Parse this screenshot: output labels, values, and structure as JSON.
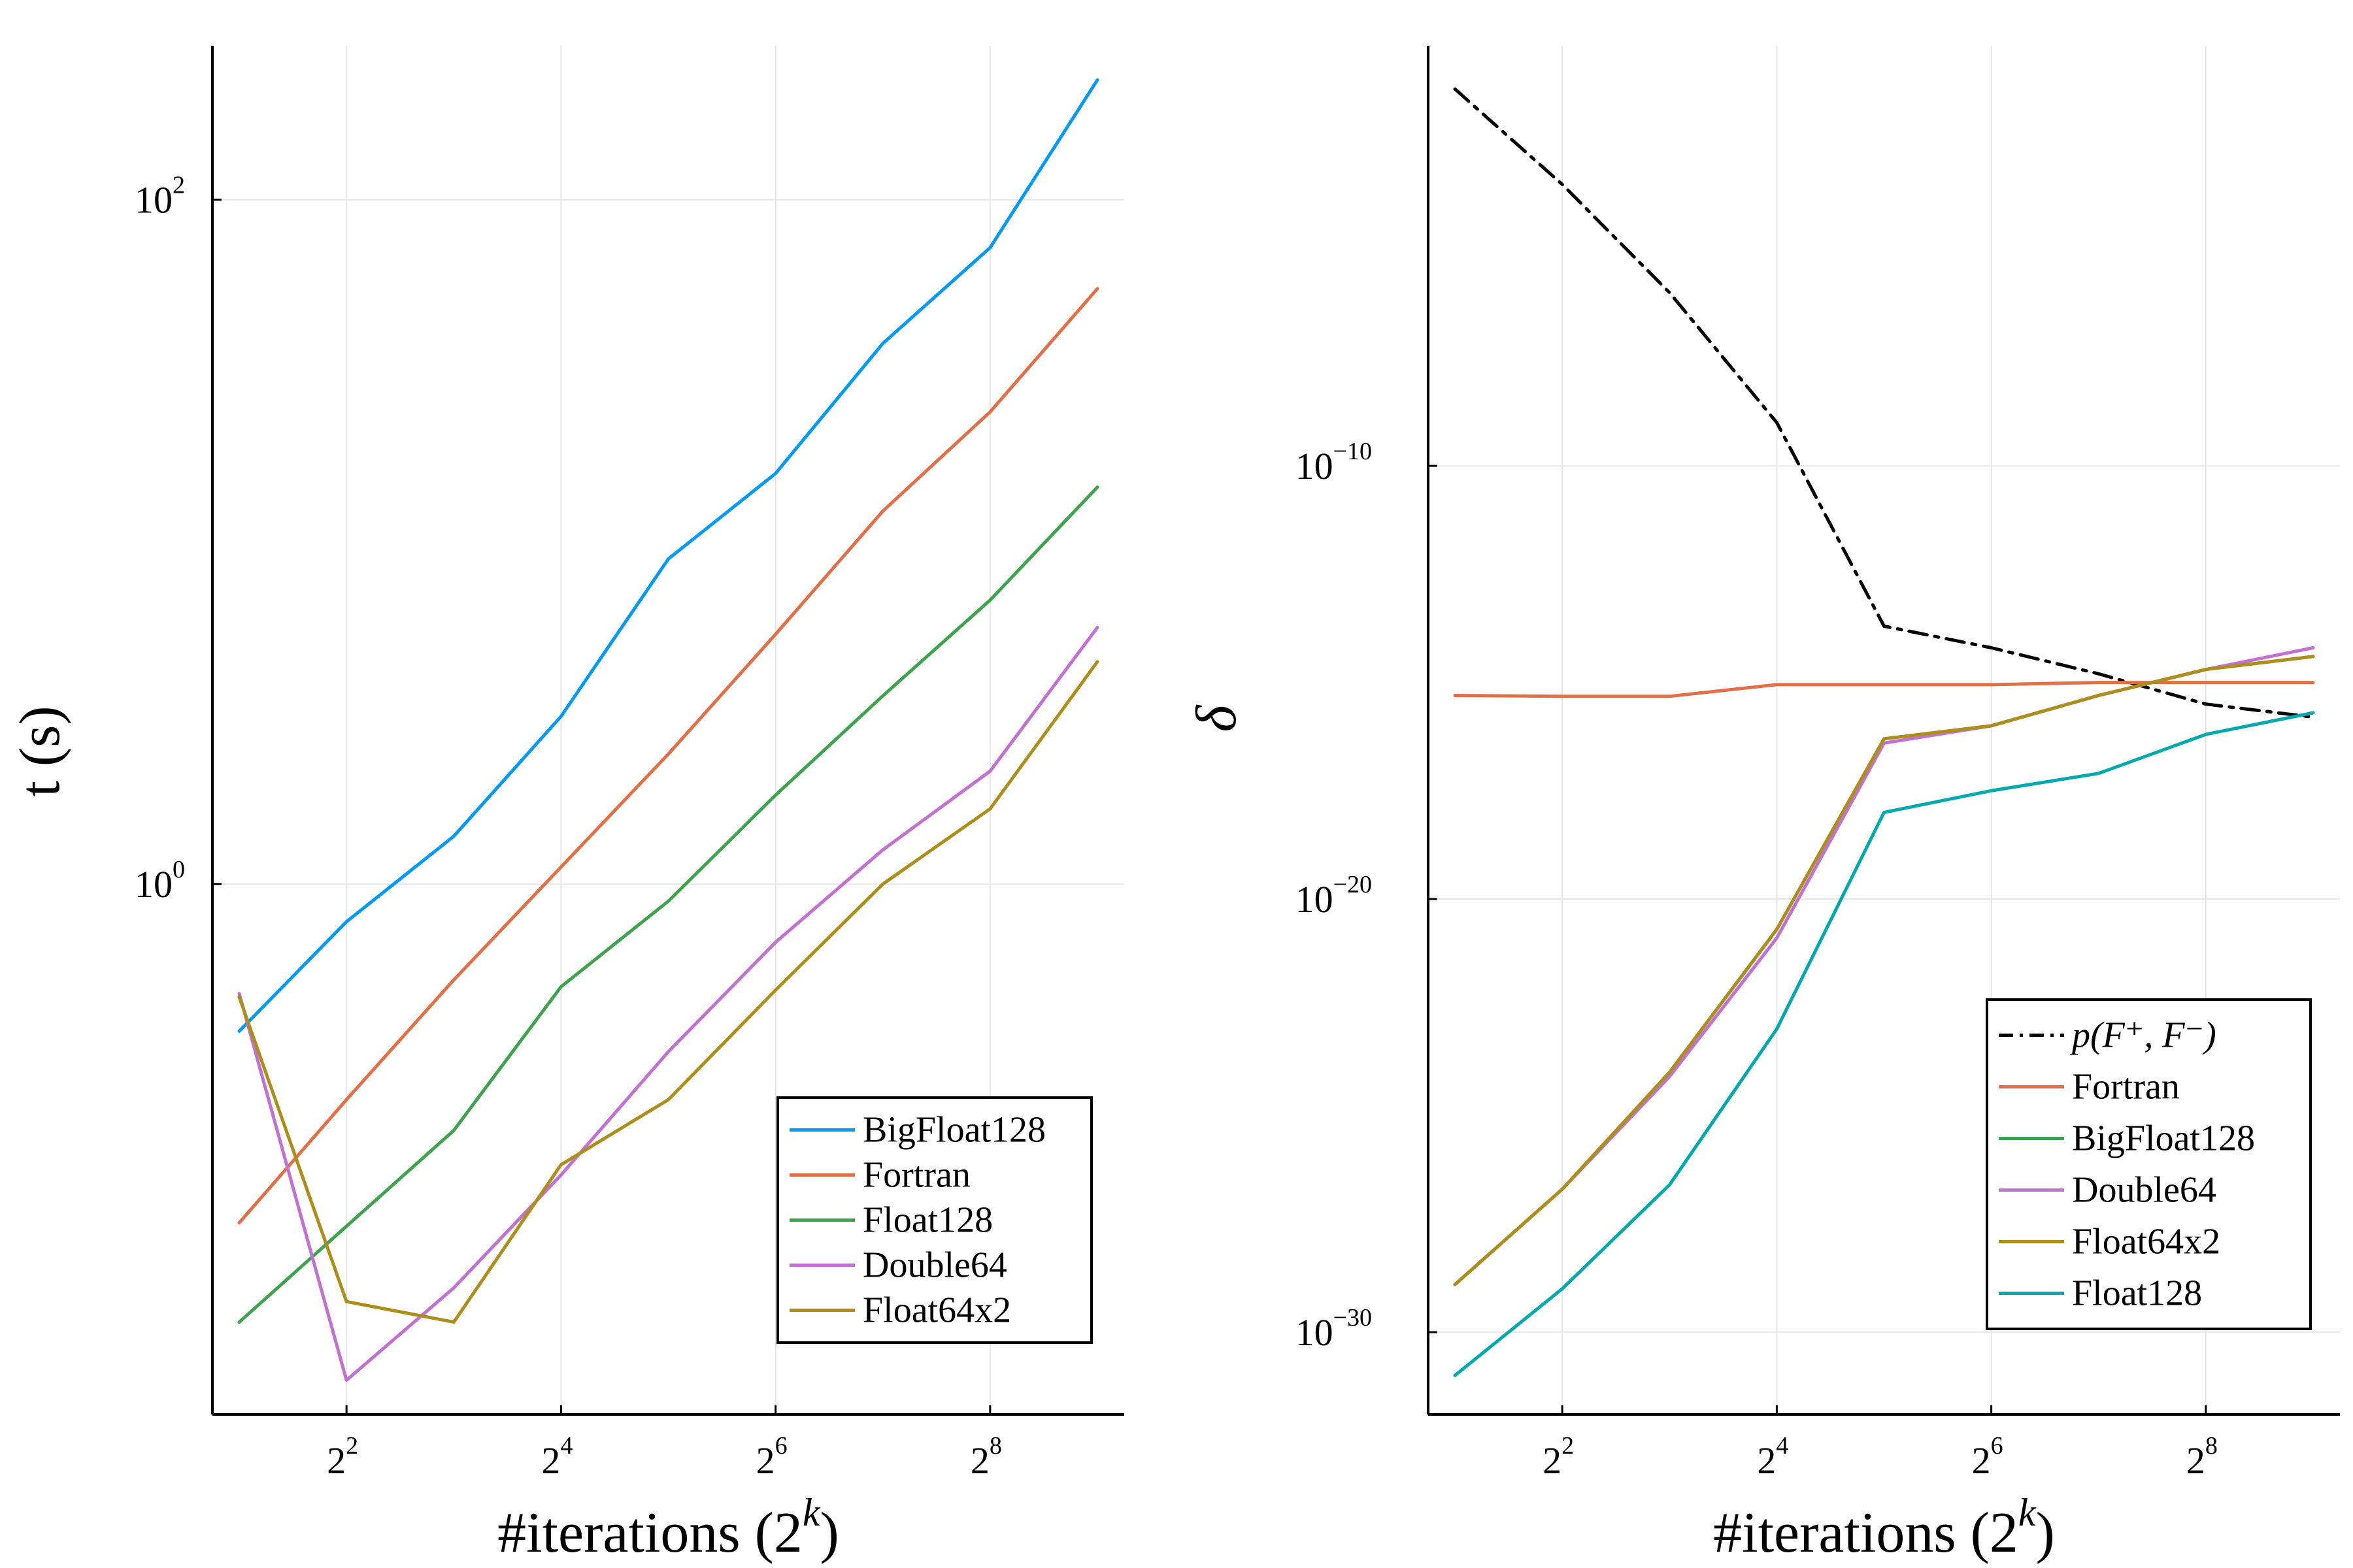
{
  "chart_data": [
    {
      "type": "line",
      "xlabel": "#iterations (2^k)",
      "ylabel": "t (s)",
      "xscale": "log2",
      "yscale": "log10",
      "grid": true,
      "legend_position": "bottom-right",
      "x": [
        1,
        2,
        3,
        4,
        5,
        6,
        7,
        8,
        9
      ],
      "xticks": [
        2,
        4,
        6,
        8
      ],
      "yticks": [
        0,
        2
      ],
      "series": [
        {
          "name": "BigFloat128",
          "color": "#009af9",
          "log10_values": [
            -0.43,
            -0.11,
            0.14,
            0.49,
            0.95,
            1.2,
            1.58,
            1.86,
            2.35
          ]
        },
        {
          "name": "Fortran",
          "color": "#e26f46",
          "log10_values": [
            -0.99,
            -0.63,
            -0.28,
            0.05,
            0.38,
            0.73,
            1.09,
            1.38,
            1.74
          ]
        },
        {
          "name": "Float128",
          "color": "#3da44d",
          "log10_values": [
            -1.28,
            -1.0,
            -0.72,
            -0.3,
            -0.05,
            0.26,
            0.55,
            0.83,
            1.16
          ]
        },
        {
          "name": "Double64",
          "color": "#c271d2",
          "log10_values": [
            -0.32,
            -1.45,
            -1.18,
            -0.85,
            -0.49,
            -0.17,
            0.1,
            0.33,
            0.75
          ]
        },
        {
          "name": "Float64x2",
          "color": "#ac8e18",
          "log10_values": [
            -0.33,
            -1.22,
            -1.28,
            -0.82,
            -0.63,
            -0.31,
            0.0,
            0.22,
            0.65
          ]
        }
      ]
    },
    {
      "type": "line",
      "xlabel": "#iterations (2^k)",
      "ylabel": "δ",
      "xscale": "log2",
      "yscale": "log10",
      "grid": true,
      "legend_position": "bottom-right",
      "x": [
        1,
        2,
        3,
        4,
        5,
        6,
        7,
        8,
        9
      ],
      "xticks": [
        2,
        4,
        6,
        8
      ],
      "yticks": [
        -30,
        -20,
        -10
      ],
      "series": [
        {
          "name": "p(F⁺, F⁻)",
          "color": "#000000",
          "dash": "dashdot",
          "log10_values": [
            -1.3,
            -3.5,
            -6.0,
            -9.0,
            -13.7,
            -14.2,
            -14.8,
            -15.5,
            -15.8
          ]
        },
        {
          "name": "Fortran",
          "color": "#e26f46",
          "log10_values": [
            -15.3,
            -15.32,
            -15.32,
            -15.05,
            -15.05,
            -15.05,
            -15.0,
            -15.0,
            -15.0
          ]
        },
        {
          "name": "BigFloat128",
          "color": "#3da44d",
          "log10_values": [
            -28.9,
            -26.7,
            -24.0,
            -20.7,
            -16.3,
            -16.0,
            -15.3,
            -14.7,
            -14.4
          ]
        },
        {
          "name": "Double64",
          "color": "#c271d2",
          "log10_values": [
            -28.9,
            -26.7,
            -24.1,
            -20.9,
            -16.4,
            -16.0,
            -15.3,
            -14.7,
            -14.2
          ]
        },
        {
          "name": "Float64x2",
          "color": "#ac8e18",
          "log10_values": [
            -28.9,
            -26.7,
            -24.0,
            -20.7,
            -16.3,
            -16.0,
            -15.3,
            -14.7,
            -14.4
          ]
        },
        {
          "name": "Float128",
          "color": "#00a9ad",
          "log10_values": [
            -31.0,
            -29.0,
            -26.6,
            -23.0,
            -18.0,
            -17.5,
            -17.1,
            -16.2,
            -15.7
          ]
        }
      ]
    }
  ]
}
